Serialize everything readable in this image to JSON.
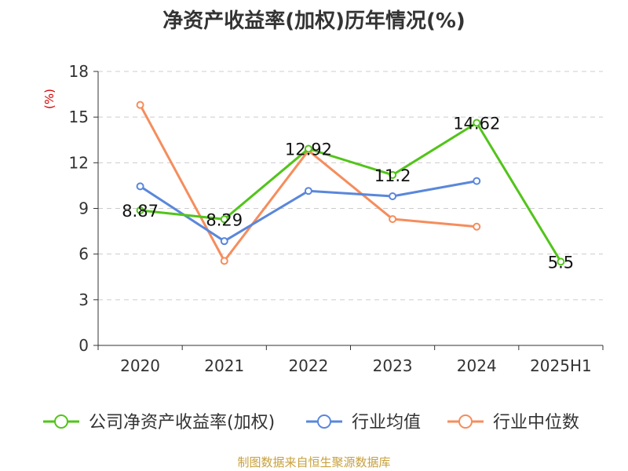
{
  "colors": {
    "company": "#52c41a",
    "industry_avg": "#5a87db",
    "industry_median": "#f58d5c",
    "grid": "#cccccc",
    "axis": "#333333"
  },
  "chart_data": {
    "type": "line",
    "title": "净资产收益率(加权)历年情况(%)",
    "ylabel": "(%)",
    "source": "制图数据来自恒生聚源数据库",
    "categories": [
      "2020",
      "2021",
      "2022",
      "2023",
      "2024",
      "2025H1"
    ],
    "ylim": [
      0,
      18
    ],
    "yticks": [
      0,
      3,
      6,
      9,
      12,
      15,
      18
    ],
    "grid": true,
    "legend_position": "bottom",
    "series": [
      {
        "name": "公司净资产收益率(加权)",
        "color_key": "company",
        "values": [
          8.87,
          8.29,
          12.92,
          11.2,
          14.62,
          5.5
        ],
        "labels": [
          "8.87",
          "8.29",
          "12.92",
          "11.2",
          "14.62",
          "5.5"
        ]
      },
      {
        "name": "行业均值",
        "color_key": "industry_avg",
        "values": [
          10.45,
          6.85,
          10.15,
          9.8,
          10.8,
          null
        ]
      },
      {
        "name": "行业中位数",
        "color_key": "industry_median",
        "values": [
          15.8,
          5.55,
          12.8,
          8.3,
          7.8,
          null
        ]
      }
    ]
  }
}
